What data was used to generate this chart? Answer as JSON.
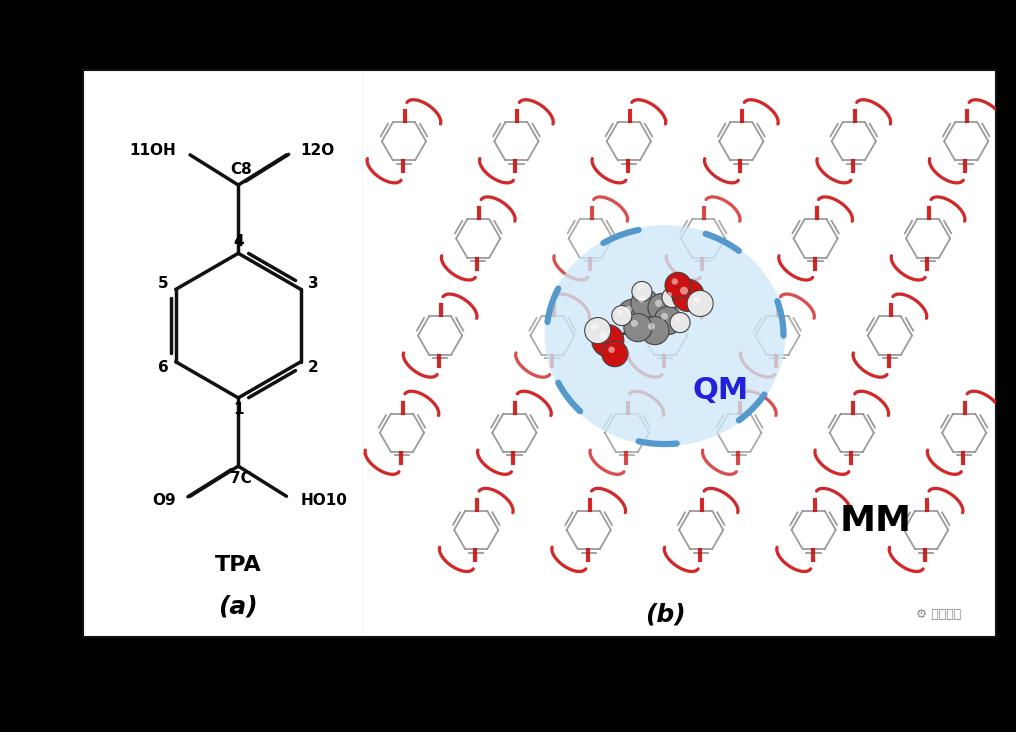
{
  "bg_color": "#000000",
  "panel_bg": "#ffffff",
  "title_a": "(a)",
  "title_b": "(b)",
  "tpa_label": "TPA",
  "qm_label": "QM",
  "mm_label": "MM",
  "qm_color": "#2020dd",
  "mm_color": "#000000",
  "ring_color_mm": "#909090",
  "bond_color_a": "#111111",
  "red_color": "#cc1111",
  "blue_dash_color": "#5599cc",
  "qm_bg_color": "#cce8f8",
  "gray_ball": "#888888",
  "white_ball": "#e8e8e8",
  "red_ball": "#cc1111"
}
